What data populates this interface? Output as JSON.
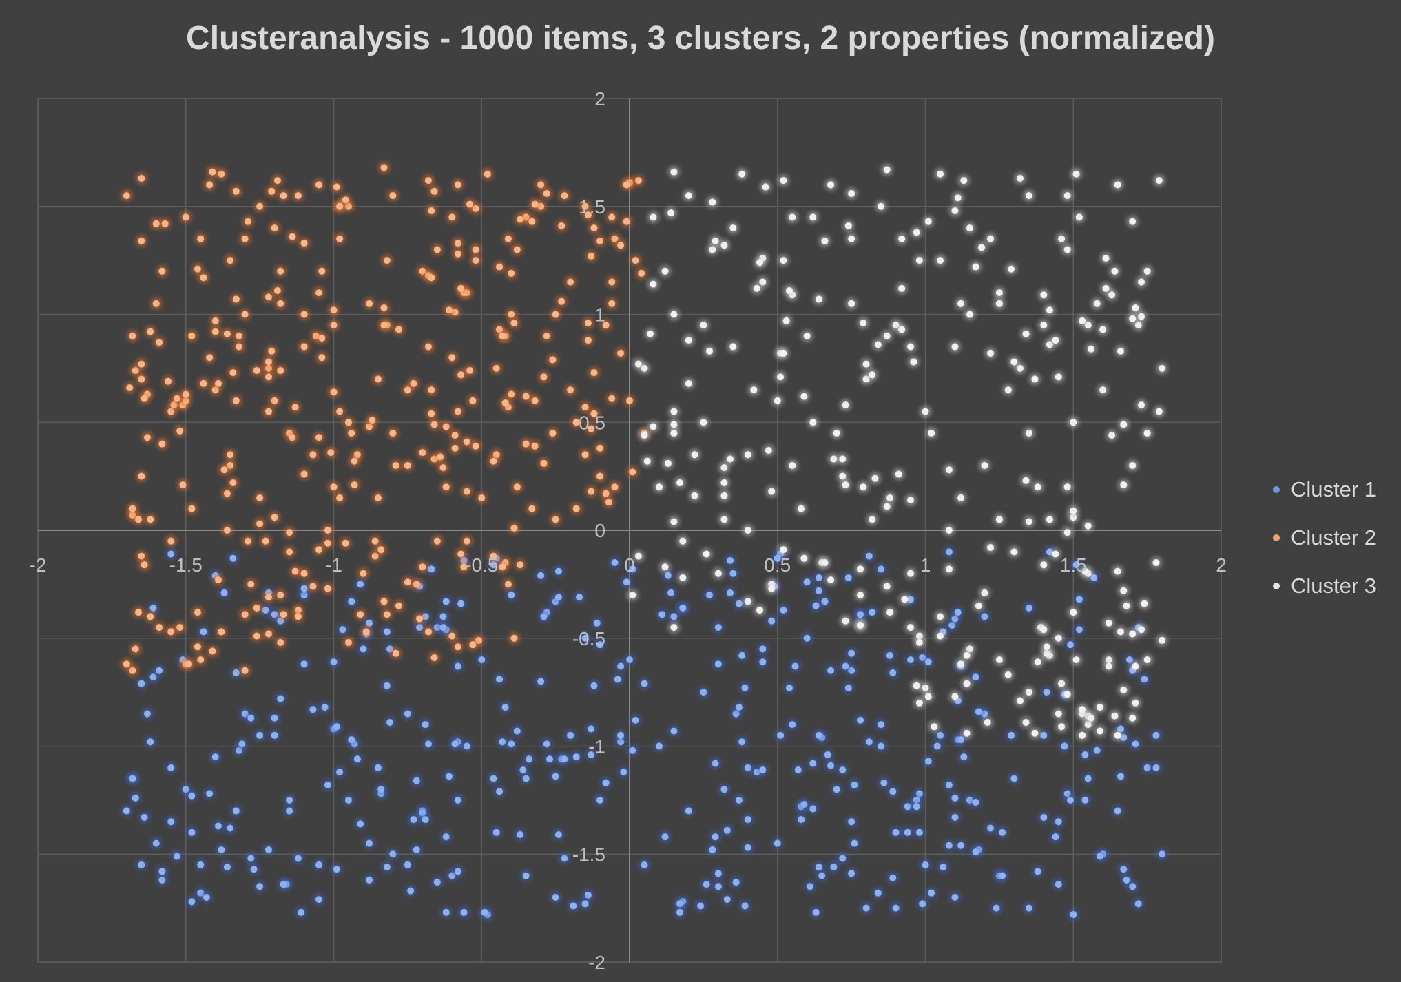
{
  "chart_data": {
    "type": "scatter",
    "title": "Clusteranalysis - 1000 items, 3 clusters, 2 properties (normalized)",
    "xlabel": "",
    "ylabel": "",
    "xlim": [
      -2,
      2
    ],
    "ylim": [
      -2,
      2
    ],
    "x_ticks": [
      "-2",
      "-1.5",
      "-1",
      "-0.5",
      "0",
      "0.5",
      "1",
      "1.5",
      "2"
    ],
    "y_ticks": [
      "2",
      "1.5",
      "1",
      "0.5",
      "0",
      "-0.5",
      "-1",
      "-1.5",
      "-2"
    ],
    "grid": true,
    "legend_position": "right",
    "series": [
      {
        "name": "Cluster 1",
        "color": "#5b84d6",
        "x_range": [
          -1.7,
          1.8
        ],
        "y_range": [
          -1.78,
          -0.1
        ],
        "n_points": 390,
        "points": [
          [
            -1.7,
            -1.3
          ],
          [
            -1.68,
            -1.15
          ],
          [
            -1.6,
            -1.45
          ],
          [
            -1.58,
            -1.62
          ],
          [
            -1.55,
            -1.35
          ],
          [
            -1.5,
            -1.2
          ],
          [
            -1.45,
            -1.68
          ],
          [
            -1.4,
            -1.05
          ],
          [
            -1.35,
            -1.38
          ],
          [
            -1.3,
            -0.85
          ],
          [
            -1.25,
            -1.65
          ],
          [
            -1.2,
            -0.95
          ],
          [
            -1.15,
            -1.3
          ],
          [
            -1.1,
            -0.62
          ],
          [
            -1.05,
            -1.55
          ],
          [
            -1.0,
            -0.92
          ],
          [
            -0.95,
            -1.25
          ],
          [
            -0.9,
            -0.55
          ],
          [
            -0.85,
            -1.1
          ],
          [
            -0.8,
            -1.5
          ],
          [
            -0.75,
            -0.85
          ],
          [
            -0.7,
            -1.3
          ],
          [
            -0.65,
            -0.45
          ],
          [
            -0.6,
            -1.6
          ],
          [
            -0.55,
            -1.0
          ],
          [
            -0.5,
            -0.6
          ],
          [
            -0.45,
            -1.4
          ],
          [
            -0.4,
            -0.3
          ],
          [
            -0.35,
            -1.15
          ],
          [
            -0.3,
            -0.7
          ],
          [
            -0.25,
            -1.7
          ],
          [
            -0.2,
            -0.95
          ],
          [
            -0.15,
            -0.5
          ],
          [
            -0.1,
            -1.25
          ],
          [
            -0.05,
            -0.15
          ],
          [
            0.0,
            -0.6
          ],
          [
            0.05,
            -1.55
          ],
          [
            0.1,
            -1.0
          ],
          [
            0.15,
            -0.4
          ],
          [
            0.2,
            -1.3
          ],
          [
            0.25,
            -0.75
          ],
          [
            0.3,
            -1.65
          ],
          [
            0.35,
            -0.2
          ],
          [
            0.4,
            -1.1
          ],
          [
            0.45,
            -0.55
          ],
          [
            0.5,
            -1.45
          ],
          [
            0.55,
            -0.9
          ],
          [
            0.6,
            -0.5
          ],
          [
            0.65,
            -1.6
          ],
          [
            0.7,
            -1.2
          ],
          [
            0.75,
            -0.65
          ],
          [
            0.8,
            -1.75
          ],
          [
            0.85,
            -1.0
          ],
          [
            0.9,
            -1.4
          ],
          [
            0.95,
            -0.6
          ],
          [
            1.0,
            -1.55
          ],
          [
            1.05,
            -0.95
          ],
          [
            1.1,
            -1.7
          ],
          [
            1.15,
            -1.25
          ],
          [
            1.2,
            -0.85
          ],
          [
            1.25,
            -1.6
          ],
          [
            1.3,
            -1.15
          ],
          [
            1.35,
            -1.75
          ],
          [
            1.4,
            -0.95
          ],
          [
            1.45,
            -1.35
          ],
          [
            1.5,
            -1.78
          ],
          [
            1.55,
            -1.15
          ],
          [
            1.6,
            -1.5
          ],
          [
            1.65,
            -1.3
          ],
          [
            1.7,
            -1.65
          ],
          [
            1.75,
            -1.1
          ],
          [
            1.8,
            -1.5
          ],
          [
            -1.62,
            -0.98
          ],
          [
            -1.42,
            -1.22
          ],
          [
            -1.22,
            -1.48
          ],
          [
            -1.02,
            -1.18
          ],
          [
            -0.82,
            -0.72
          ],
          [
            -0.62,
            -1.42
          ],
          [
            -0.42,
            -0.82
          ],
          [
            -0.22,
            -1.52
          ],
          [
            -0.02,
            -1.12
          ],
          [
            0.18,
            -1.72
          ],
          [
            0.38,
            -0.98
          ],
          [
            0.58,
            -1.28
          ],
          [
            0.78,
            -0.88
          ],
          [
            0.98,
            -1.22
          ],
          [
            1.18,
            -1.48
          ],
          [
            1.38,
            -1.58
          ],
          [
            1.58,
            -1.02
          ],
          [
            -1.48,
            -1.72
          ],
          [
            -0.88,
            -1.62
          ],
          [
            -0.28,
            -0.38
          ],
          [
            0.28,
            -1.48
          ],
          [
            0.88,
            -0.58
          ],
          [
            1.48,
            -1.22
          ],
          [
            -1.18,
            -0.78
          ],
          [
            -0.58,
            -0.98
          ],
          [
            0.02,
            -0.88
          ],
          [
            0.62,
            -1.08
          ],
          [
            1.22,
            -1.38
          ],
          [
            -0.48,
            -1.78
          ],
          [
            0.48,
            -0.42
          ],
          [
            -1.32,
            -1.02
          ],
          [
            1.02,
            -1.68
          ],
          [
            -0.72,
            -1.48
          ],
          [
            0.72,
            -1.52
          ],
          [
            -0.12,
            -0.72
          ],
          [
            0.12,
            -1.42
          ],
          [
            -1.58,
            -1.58
          ],
          [
            1.68,
            -1.62
          ]
        ]
      },
      {
        "name": "Cluster 2",
        "color": "#ed8b4f",
        "x_range": [
          -1.7,
          0.05
        ],
        "y_range": [
          -0.65,
          1.7
        ],
        "n_points": 330,
        "points": [
          [
            -1.7,
            1.55
          ],
          [
            -1.68,
            0.9
          ],
          [
            -1.65,
            0.25
          ],
          [
            -1.62,
            -0.4
          ],
          [
            -1.58,
            1.2
          ],
          [
            -1.55,
            0.55
          ],
          [
            -1.5,
            1.45
          ],
          [
            -1.48,
            0.1
          ],
          [
            -1.45,
            -0.6
          ],
          [
            -1.42,
            0.8
          ],
          [
            -1.38,
            1.65
          ],
          [
            -1.35,
            0.3
          ],
          [
            -1.3,
            1.0
          ],
          [
            -1.28,
            -0.25
          ],
          [
            -1.25,
            1.5
          ],
          [
            -1.2,
            0.6
          ],
          [
            -1.18,
            1.2
          ],
          [
            -1.15,
            -0.1
          ],
          [
            -1.1,
            0.85
          ],
          [
            -1.05,
            1.6
          ],
          [
            -1.0,
            0.2
          ],
          [
            -0.98,
            1.35
          ],
          [
            -0.95,
            0.5
          ],
          [
            -0.9,
            -0.2
          ],
          [
            -0.88,
            1.05
          ],
          [
            -0.85,
            0.7
          ],
          [
            -0.8,
            1.55
          ],
          [
            -0.78,
            -0.35
          ],
          [
            -0.75,
            0.3
          ],
          [
            -0.7,
            1.2
          ],
          [
            -0.68,
            0.85
          ],
          [
            -0.65,
            -0.05
          ],
          [
            -0.6,
            1.45
          ],
          [
            -0.58,
            0.55
          ],
          [
            -0.55,
            1.1
          ],
          [
            -0.5,
            0.15
          ],
          [
            -0.48,
            1.65
          ],
          [
            -0.45,
            0.75
          ],
          [
            -0.42,
            -0.15
          ],
          [
            -0.38,
            1.3
          ],
          [
            -0.35,
            0.4
          ],
          [
            -0.3,
            1.6
          ],
          [
            -0.28,
            0.9
          ],
          [
            -0.25,
            0.05
          ],
          [
            -0.2,
            1.15
          ],
          [
            -0.18,
            0.5
          ],
          [
            -0.15,
            1.5
          ],
          [
            -0.1,
            0.25
          ],
          [
            -0.08,
            0.95
          ],
          [
            -0.05,
            1.35
          ],
          [
            0.0,
            0.6
          ],
          [
            0.02,
            1.25
          ],
          [
            0.05,
            0.45
          ],
          [
            -1.6,
            1.05
          ],
          [
            -1.4,
            0.65
          ],
          [
            -1.2,
            1.4
          ],
          [
            -1.0,
            0.95
          ],
          [
            -0.8,
            0.45
          ],
          [
            -0.6,
            0.8
          ],
          [
            -0.4,
            1.0
          ],
          [
            -0.2,
            0.65
          ],
          [
            -1.55,
            -0.05
          ],
          [
            -1.35,
            1.25
          ],
          [
            -1.15,
            0.45
          ],
          [
            -0.95,
            1.5
          ],
          [
            -0.75,
            0.65
          ],
          [
            -0.55,
            -0.05
          ],
          [
            -0.35,
            1.45
          ],
          [
            -0.15,
            0.35
          ],
          [
            -1.65,
            0.7
          ],
          [
            -1.45,
            1.35
          ],
          [
            -1.25,
            0.15
          ],
          [
            -1.05,
            1.1
          ],
          [
            -0.85,
            0.15
          ],
          [
            -0.65,
            1.3
          ],
          [
            -0.45,
            0.35
          ],
          [
            -0.25,
            1.0
          ],
          [
            -0.05,
            0.2
          ],
          [
            -1.52,
            -0.45
          ],
          [
            -1.32,
            0.9
          ],
          [
            -1.12,
            1.55
          ],
          [
            -0.92,
            0.35
          ],
          [
            -0.72,
            -0.25
          ],
          [
            -0.52,
            1.25
          ],
          [
            -0.32,
            0.6
          ],
          [
            -0.12,
            1.4
          ],
          [
            -1.62,
            0.05
          ],
          [
            -1.42,
            1.6
          ],
          [
            -1.22,
            0.75
          ],
          [
            -1.02,
            0.0
          ],
          [
            -0.82,
            1.25
          ],
          [
            -0.62,
            0.2
          ],
          [
            -0.42,
            0.9
          ],
          [
            -0.22,
            1.55
          ],
          [
            -1.58,
            0.4
          ],
          [
            -0.98,
            0.55
          ],
          [
            -0.38,
            0.2
          ],
          [
            -1.18,
            -0.3
          ],
          [
            -0.58,
            1.6
          ],
          [
            -0.18,
            0.1
          ]
        ]
      },
      {
        "name": "Cluster 3",
        "color": "#e0e0e0",
        "x_range": [
          0.0,
          1.8
        ],
        "y_range": [
          -0.95,
          1.7
        ],
        "n_points": 280,
        "points": [
          [
            0.05,
            0.75
          ],
          [
            0.08,
            1.45
          ],
          [
            0.1,
            0.2
          ],
          [
            0.15,
            1.0
          ],
          [
            0.18,
            -0.05
          ],
          [
            0.2,
            1.55
          ],
          [
            0.25,
            0.5
          ],
          [
            0.28,
            1.3
          ],
          [
            0.3,
            -0.2
          ],
          [
            0.35,
            0.85
          ],
          [
            0.38,
            1.65
          ],
          [
            0.4,
            0.35
          ],
          [
            0.45,
            1.15
          ],
          [
            0.48,
            -0.25
          ],
          [
            0.5,
            0.6
          ],
          [
            0.55,
            1.45
          ],
          [
            0.58,
            0.1
          ],
          [
            0.6,
            0.9
          ],
          [
            0.65,
            -0.15
          ],
          [
            0.68,
            1.6
          ],
          [
            0.7,
            0.45
          ],
          [
            0.75,
            1.05
          ],
          [
            0.78,
            -0.3
          ],
          [
            0.8,
            0.7
          ],
          [
            0.85,
            1.5
          ],
          [
            0.88,
            0.15
          ],
          [
            0.9,
            0.95
          ],
          [
            0.95,
            -0.45
          ],
          [
            0.98,
            1.25
          ],
          [
            1.0,
            0.55
          ],
          [
            1.05,
            1.65
          ],
          [
            1.08,
            0.0
          ],
          [
            1.1,
            0.85
          ],
          [
            1.15,
            1.4
          ],
          [
            1.18,
            -0.35
          ],
          [
            1.2,
            0.3
          ],
          [
            1.25,
            1.1
          ],
          [
            1.28,
            0.65
          ],
          [
            1.3,
            -0.1
          ],
          [
            1.35,
            1.55
          ],
          [
            1.38,
            0.2
          ],
          [
            1.4,
            0.95
          ],
          [
            1.45,
            -0.5
          ],
          [
            1.48,
            1.3
          ],
          [
            1.5,
            0.5
          ],
          [
            1.55,
            -0.2
          ],
          [
            1.58,
            1.05
          ],
          [
            1.6,
            0.65
          ],
          [
            1.65,
            1.6
          ],
          [
            1.68,
            -0.35
          ],
          [
            1.7,
            0.3
          ],
          [
            1.75,
            1.2
          ],
          [
            1.78,
            -0.15
          ],
          [
            1.8,
            0.75
          ],
          [
            0.12,
            1.2
          ],
          [
            0.32,
            0.05
          ],
          [
            0.52,
            1.25
          ],
          [
            0.72,
            0.25
          ],
          [
            0.92,
            1.35
          ],
          [
            1.12,
            0.15
          ],
          [
            1.32,
            0.75
          ],
          [
            1.52,
            1.45
          ],
          [
            1.72,
            0.95
          ],
          [
            0.22,
            0.35
          ],
          [
            0.42,
            0.65
          ],
          [
            0.62,
            0.5
          ],
          [
            0.82,
            0.05
          ],
          [
            1.02,
            0.45
          ],
          [
            1.22,
            1.35
          ],
          [
            1.42,
            0.05
          ],
          [
            1.62,
            -0.6
          ],
          [
            1.45,
            -0.85
          ],
          [
            1.55,
            -0.9
          ],
          [
            1.65,
            -0.95
          ],
          [
            1.35,
            -0.75
          ],
          [
            1.25,
            -0.6
          ],
          [
            1.15,
            -0.55
          ],
          [
            1.05,
            -0.4
          ],
          [
            0.95,
            -0.2
          ],
          [
            1.75,
            -0.6
          ],
          [
            0.15,
            0.55
          ],
          [
            0.35,
            1.4
          ],
          [
            0.55,
            0.3
          ],
          [
            0.75,
            1.35
          ],
          [
            0.95,
            0.85
          ],
          [
            1.15,
            1.0
          ],
          [
            1.35,
            0.45
          ],
          [
            1.55,
            0.95
          ],
          [
            1.75,
            0.45
          ],
          [
            0.25,
            0.95
          ]
        ]
      }
    ]
  }
}
